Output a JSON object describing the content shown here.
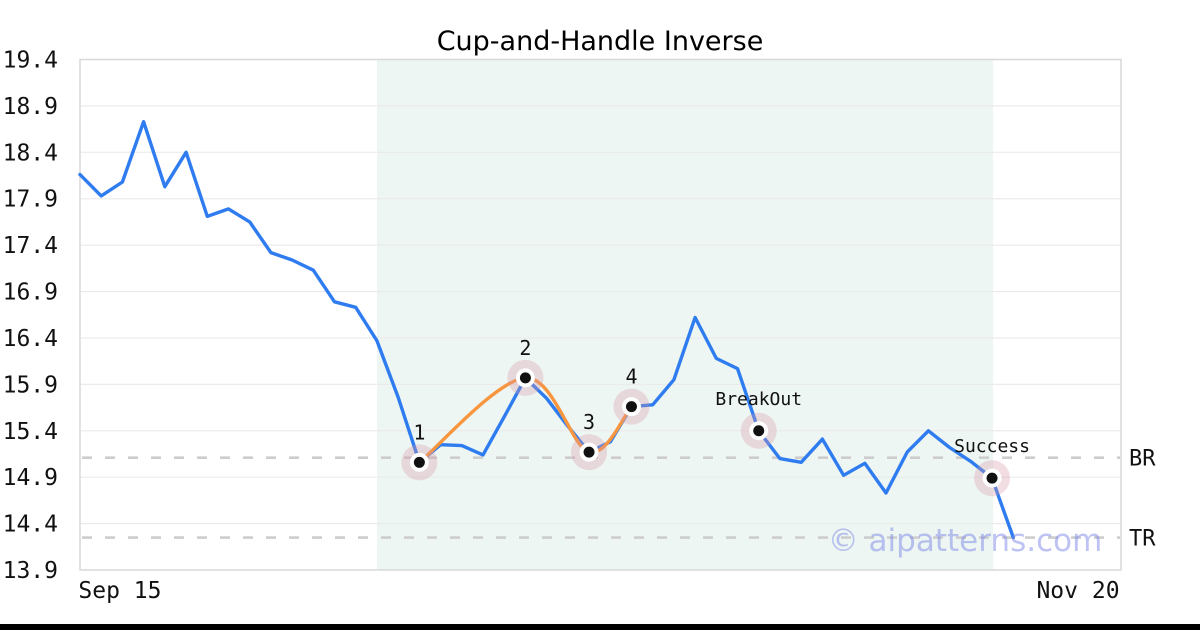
{
  "page": {
    "background": "#ffffff",
    "footer_bar_color": "#000000"
  },
  "chart_data": {
    "type": "line",
    "title": "Cup-and-Handle Inverse",
    "ylim": [
      13.9,
      19.4
    ],
    "y_ticks": [
      "19.4",
      "18.9",
      "18.4",
      "17.9",
      "17.4",
      "16.9",
      "16.4",
      "15.9",
      "15.4",
      "14.9",
      "14.4",
      "13.9"
    ],
    "x_ticks": [
      {
        "label": "Sep 15",
        "frac": 0.0384
      },
      {
        "label": "Nov 20",
        "frac": 0.9587
      }
    ],
    "grid": true,
    "legend_position": "none",
    "x_span_frac": 0.8965,
    "series": [
      {
        "name": "price",
        "color": "#2e7cf0",
        "values": [
          18.16,
          17.93,
          18.08,
          18.73,
          18.03,
          18.4,
          17.71,
          17.79,
          17.65,
          17.32,
          17.24,
          17.13,
          16.79,
          16.73,
          16.37,
          15.76,
          15.06,
          15.25,
          15.24,
          15.14,
          15.55,
          15.97,
          15.75,
          15.45,
          15.17,
          15.28,
          15.66,
          15.68,
          15.95,
          16.62,
          16.18,
          16.07,
          15.4,
          15.1,
          15.06,
          15.31,
          14.92,
          15.05,
          14.73,
          15.17,
          15.4,
          15.22,
          15.07,
          14.89,
          14.25
        ]
      }
    ],
    "pattern_overlay": {
      "name": "cup-and-handle-pattern",
      "color": "#f8963f",
      "points": [
        {
          "index": 16,
          "label": "1",
          "value": 15.06
        },
        {
          "index": 21,
          "label": "2",
          "value": 15.97
        },
        {
          "index": 24,
          "label": "3",
          "value": 15.17
        },
        {
          "index": 26,
          "label": "4",
          "value": 15.66
        }
      ]
    },
    "event_markers": [
      {
        "index": 32,
        "label": "BreakOut",
        "value": 15.4
      },
      {
        "index": 43,
        "label": "Success",
        "value": 14.89
      }
    ],
    "levels": [
      {
        "label": "BR",
        "value": 15.11
      },
      {
        "label": "TR",
        "value": 14.25
      }
    ],
    "shaded_region": {
      "start_frac": 0.2853,
      "end_frac": 0.8771,
      "color": "#edf6f2"
    },
    "watermark": "© aipatterns.com",
    "style": {
      "grid_color": "#ebebeb",
      "border_color": "#d9d9d9",
      "dash_color": "#cdcdcd",
      "halo_color": "rgba(214,150,168,0.32)",
      "marker_dot_color": "#111111",
      "marker_ring_color": "#ffffff",
      "text_color": "#111111",
      "watermark_color": "rgba(125,135,232,0.5)"
    }
  }
}
